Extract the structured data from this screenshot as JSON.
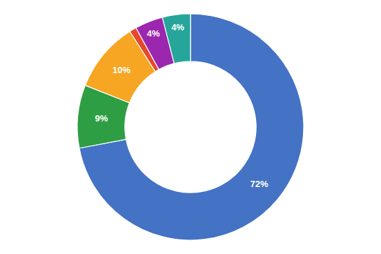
{
  "chart_data": {
    "type": "donut",
    "values": [
      72,
      9,
      10,
      1,
      4,
      4
    ],
    "value_labels": [
      "72%",
      "9%",
      "10%",
      null,
      "4%",
      "4%"
    ],
    "colors": [
      "#4472C4",
      "#2E9E44",
      "#F6A623",
      "#E8472A",
      "#9B27AF",
      "#26A69A"
    ],
    "data_labels": true
  }
}
